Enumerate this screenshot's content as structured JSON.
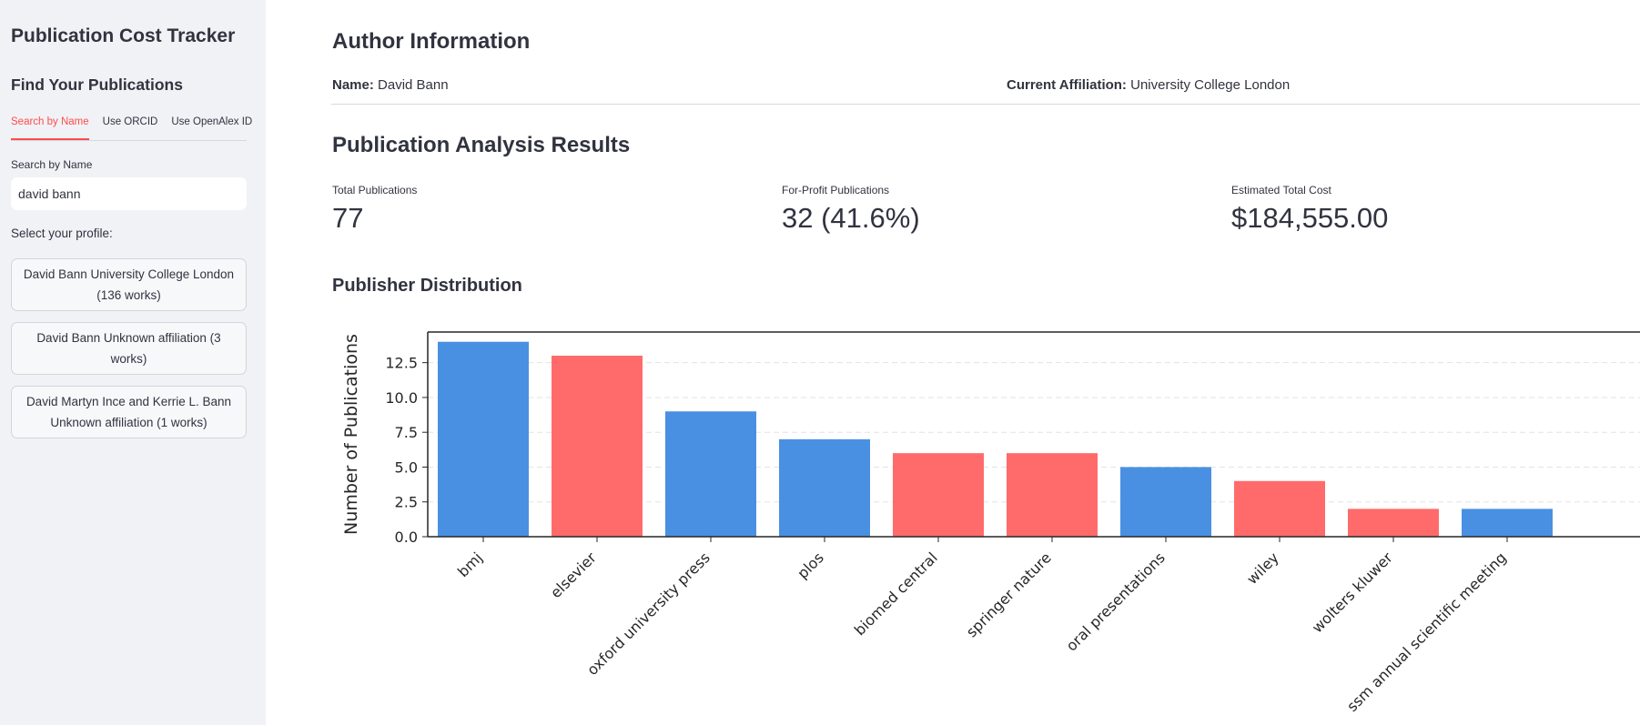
{
  "sidebar": {
    "app_title": "Publication Cost Tracker",
    "find_title": "Find Your Publications",
    "tabs": [
      {
        "label": "Search by Name",
        "active": true
      },
      {
        "label": "Use ORCID",
        "active": false
      },
      {
        "label": "Use OpenAlex ID",
        "active": false
      }
    ],
    "search_label": "Search by Name",
    "search_value": "david bann",
    "select_label": "Select your profile:",
    "profiles": [
      {
        "line1": "David Bann University College London",
        "line2": "(136 works)"
      },
      {
        "line1": "David Bann Unknown affiliation (3",
        "line2": "works)"
      },
      {
        "line1": "David Martyn Ince and Kerrie L. Bann",
        "line2": "Unknown affiliation (1 works)"
      }
    ]
  },
  "author": {
    "heading": "Author Information",
    "name_label": "Name:",
    "name": "David Bann",
    "affiliation_label": "Current Affiliation:",
    "affiliation": "University College London"
  },
  "results": {
    "heading": "Publication Analysis Results",
    "metrics": [
      {
        "label": "Total Publications",
        "value": "77"
      },
      {
        "label": "For-Profit Publications",
        "value": "32 (41.6%)"
      },
      {
        "label": "Estimated Total Cost",
        "value": "$184,555.00"
      }
    ]
  },
  "publisher_heading": "Publisher Distribution",
  "colors": {
    "accent": "#ff4b4b",
    "not_for_profit": "#4a90e2",
    "for_profit": "#ff6b6b"
  },
  "chart_data": {
    "type": "bar",
    "title": "",
    "xlabel": "",
    "ylabel": "Number of Publications",
    "ylim": [
      0,
      14.7
    ],
    "yticks": [
      "0.0",
      "2.5",
      "5.0",
      "7.5",
      "10.0",
      "12.5"
    ],
    "grid": "horizontal dashed",
    "categories": [
      "bmj",
      "elsevier",
      "oxford university press",
      "plos",
      "biomed central",
      "springer nature",
      "oral presentations",
      "wiley",
      "wolters kluwer",
      "ssm annual scientific meeting"
    ],
    "values": [
      14,
      13,
      9,
      7,
      6,
      6,
      5,
      4,
      2,
      2
    ],
    "for_profit": [
      false,
      true,
      false,
      false,
      true,
      true,
      false,
      true,
      true,
      false
    ]
  }
}
